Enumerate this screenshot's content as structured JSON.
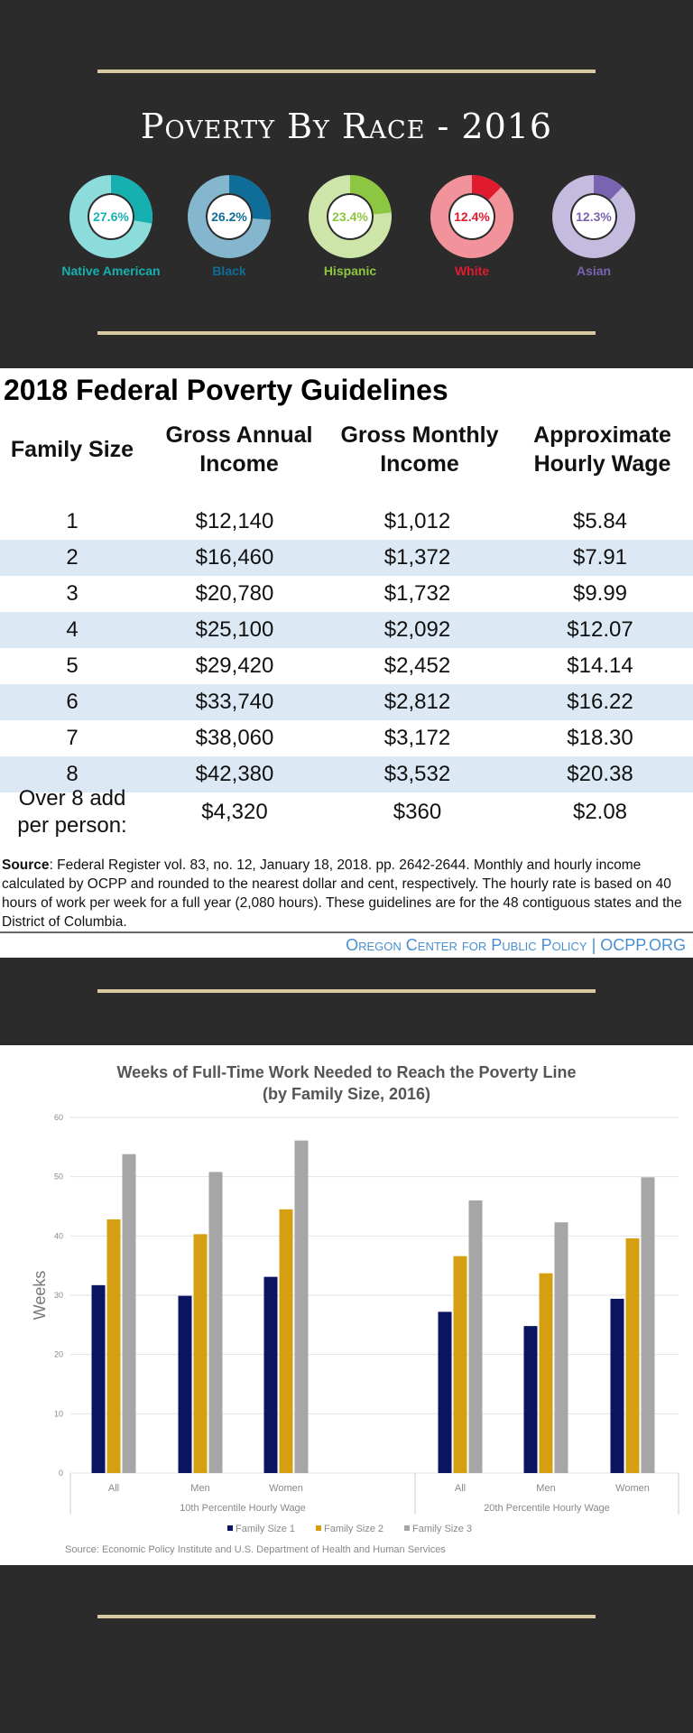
{
  "race_section": {
    "title": "Poverty By Race - 2016",
    "groups": [
      {
        "name": "Native American",
        "percent_label": "27.6%",
        "value": 27.6,
        "color": "#17b0b0",
        "light": "#8ddcdc"
      },
      {
        "name": "Black",
        "percent_label": "26.2%",
        "value": 26.2,
        "color": "#0f6d98",
        "light": "#84b6cd"
      },
      {
        "name": "Hispanic",
        "percent_label": "23.4%",
        "value": 23.4,
        "color": "#8dc641",
        "light": "#cde5a8"
      },
      {
        "name": "White",
        "percent_label": "12.4%",
        "value": 12.4,
        "color": "#e11b2e",
        "light": "#f2939b"
      },
      {
        "name": "Asian",
        "percent_label": "12.3%",
        "value": 12.3,
        "color": "#7a63b0",
        "light": "#c5bbdf"
      }
    ]
  },
  "guidelines": {
    "title": "2018 Federal Poverty Guidelines",
    "headers": {
      "family_size": "Family Size",
      "annual_1": "Gross Annual",
      "annual_2": "Income",
      "monthly_1": "Gross Monthly",
      "monthly_2": "Income",
      "hourly_1": "Approximate",
      "hourly_2": "Hourly Wage"
    },
    "rows": [
      {
        "size": "1",
        "annual": "$12,140",
        "monthly": "$1,012",
        "hourly": "$5.84"
      },
      {
        "size": "2",
        "annual": "$16,460",
        "monthly": "$1,372",
        "hourly": "$7.91"
      },
      {
        "size": "3",
        "annual": "$20,780",
        "monthly": "$1,732",
        "hourly": "$9.99"
      },
      {
        "size": "4",
        "annual": "$25,100",
        "monthly": "$2,092",
        "hourly": "$12.07"
      },
      {
        "size": "5",
        "annual": "$29,420",
        "monthly": "$2,452",
        "hourly": "$14.14"
      },
      {
        "size": "6",
        "annual": "$33,740",
        "monthly": "$2,812",
        "hourly": "$16.22"
      },
      {
        "size": "7",
        "annual": "$38,060",
        "monthly": "$3,172",
        "hourly": "$18.30"
      },
      {
        "size": "8",
        "annual": "$42,380",
        "monthly": "$3,532",
        "hourly": "$20.38"
      }
    ],
    "last_row": {
      "size_1": "Over 8 add",
      "size_2": "per person:",
      "annual": "$4,320",
      "monthly": "$360",
      "hourly": "$2.08"
    },
    "source_label": "Source",
    "source_text": ": Federal Register vol. 83, no. 12, January 18, 2018. pp. 2642-2644. Monthly and hourly income calculated by OCPP and rounded to the nearest dollar and cent, respectively. The hourly rate is based on 40 hours of work per week for a full year (2,080 hours). These guidelines are for the 48 contiguous states and the District of Columbia.",
    "credit_org": "Oregon Center for Public Policy",
    "credit_sep": " | ",
    "credit_site": "OCPP.ORG"
  },
  "chart_data": {
    "type": "bar",
    "title": "Weeks of Full-Time Work Needed to Reach the Poverty Line",
    "subtitle": "(by Family Size, 2016)",
    "ylabel": "Weeks",
    "ylim": [
      0,
      60
    ],
    "yticks": [
      0,
      10,
      20,
      30,
      40,
      50,
      60
    ],
    "grid": true,
    "legend_position": "bottom",
    "groups": [
      {
        "name": "10th Percentile Hourly Wage",
        "categories": [
          "All",
          "Men",
          "Women"
        ]
      },
      {
        "name": "20th Percentile Hourly Wage",
        "categories": [
          "All",
          "Men",
          "Women"
        ]
      }
    ],
    "series": [
      {
        "name": "Family Size 1",
        "color": "#0b1460",
        "values": [
          31.7,
          29.9,
          33.1,
          27.2,
          24.8,
          29.4
        ]
      },
      {
        "name": "Family Size 2",
        "color": "#d4a012",
        "values": [
          42.8,
          40.3,
          44.5,
          36.6,
          33.7,
          39.6
        ]
      },
      {
        "name": "Family Size 3",
        "color": "#a6a6a6",
        "values": [
          53.8,
          50.8,
          56.1,
          46.0,
          42.3,
          49.9
        ]
      }
    ],
    "source": "Source: Economic Policy Institute and U.S. Department of Health and Human Services"
  }
}
